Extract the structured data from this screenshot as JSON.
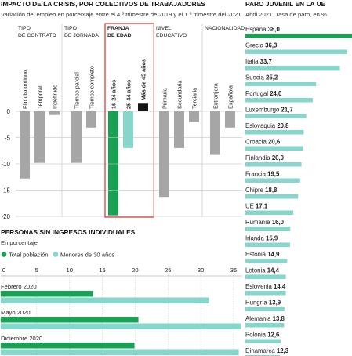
{
  "colors": {
    "gray_bar": "#a6a6a6",
    "green": "#1aa055",
    "light_teal": "#86d6cb",
    "black": "#151515",
    "red_box": "#d6332f",
    "grid": "#cfcfcf",
    "text": "#222222"
  },
  "panel_left": {
    "title": "IMPACTO DE LA CRISIS, POR COLECTIVOS DE TRABAJADORES",
    "subtitle": "Variación del empleo en porcentaje entre el 4.º trimestre de 2019 y el 1.º trimestre del 2021"
  },
  "panel_bottom": {
    "title": "PERSONAS SIN INGRESOS INDIVIDUALES",
    "subtitle": "En porcentaje"
  },
  "panel_right": {
    "title": "PARO JUVENIL EN LA UE",
    "subtitle": "Abril 2021. Tasa de paro, en %"
  },
  "chart_data": [
    {
      "type": "bar",
      "title": "IMPACTO DE LA CRISIS, POR COLECTIVOS DE TRABAJADORES",
      "subtitle": "Variación del empleo en porcentaje entre el 4.º trimestre de 2019 y el 1.º trimestre del 2021",
      "ylim": [
        -20,
        0
      ],
      "yticks": [
        "0",
        "-5",
        "-10",
        "-15",
        "-20"
      ],
      "yvalues": [
        0,
        -5,
        -10,
        -15,
        -20
      ],
      "grid": true,
      "groups": [
        {
          "name_lines": [
            "TIPO",
            "DE CONTRATO"
          ],
          "highlight": false,
          "bars": [
            {
              "label": "Fijo discontinuo",
              "value": -12.8
            },
            {
              "label": "Temporal",
              "value": -9.8
            },
            {
              "label": "Indefinido",
              "value": -0.7
            }
          ]
        },
        {
          "name_lines": [
            "TIPO",
            "DE JORNADA"
          ],
          "highlight": false,
          "bars": [
            {
              "label": "Tiempo parcial",
              "value": -9.8
            },
            {
              "label": "Tiempo completo",
              "value": -3.1
            }
          ]
        },
        {
          "name_lines": [
            "FRANJA",
            "DE EDAD"
          ],
          "highlight": true,
          "bars": [
            {
              "label": "16-24 años",
              "value": -19.8,
              "color": "#1aa055"
            },
            {
              "label": "25-44 años",
              "value": -7.0,
              "color": "#86d6cb"
            },
            {
              "label": "Más de 45 años",
              "value": 1.6,
              "color": "#151515"
            }
          ]
        },
        {
          "name_lines": [
            "NIVEL",
            "EDUCATIVO"
          ],
          "highlight": false,
          "bars": [
            {
              "label": "Primaria",
              "value": -16.3
            },
            {
              "label": "Secundaria",
              "value": -7.0
            },
            {
              "label": "Terciaria",
              "value": -2.0
            }
          ]
        },
        {
          "name_lines": [
            "NACIONALIDAD"
          ],
          "highlight": false,
          "bars": [
            {
              "label": "Extranjera",
              "value": -8.3
            },
            {
              "label": "Española",
              "value": -3.1
            }
          ]
        }
      ]
    },
    {
      "type": "bar",
      "orientation": "horizontal",
      "title": "PERSONAS SIN INGRESOS INDIVIDUALES",
      "subtitle": "En porcentaje",
      "xlim": [
        0,
        35
      ],
      "xticks": [
        "0",
        "5",
        "10",
        "15",
        "20",
        "25",
        "30",
        "35"
      ],
      "xvalues": [
        0,
        5,
        10,
        15,
        20,
        25,
        30,
        35
      ],
      "legend_position": "top-left",
      "series": [
        {
          "name": "Total población",
          "color": "#1aa055",
          "values": [
            13.6,
            20.5,
            19.9
          ]
        },
        {
          "name": "Menores de 30 años",
          "color": "#86d6cb",
          "values": [
            31.3,
            36.2,
            35.8
          ]
        }
      ],
      "categories": [
        "Febrero 2020",
        "Mayo 2020",
        "Diciembre 2020"
      ]
    },
    {
      "type": "bar",
      "orientation": "horizontal",
      "title": "PARO JUVENIL EN LA UE",
      "subtitle": "Abril 2021. Tasa de paro, en %",
      "xlim": [
        0,
        38
      ],
      "items": [
        {
          "country": "España",
          "value": 38.0,
          "value_label": "38,0",
          "highlight": true
        },
        {
          "country": "Grecia",
          "value": 36.3,
          "value_label": "36,3"
        },
        {
          "country": "Italia",
          "value": 33.7,
          "value_label": "33,7"
        },
        {
          "country": "Suecia",
          "value": 25.2,
          "value_label": "25,2"
        },
        {
          "country": "Portugal",
          "value": 24.0,
          "value_label": "24,0"
        },
        {
          "country": "Luxemburgo",
          "value": 21.7,
          "value_label": "21,7"
        },
        {
          "country": "Eslovaquia",
          "value": 20.8,
          "value_label": "20,8"
        },
        {
          "country": "Croacia",
          "value": 20.6,
          "value_label": "20,6"
        },
        {
          "country": "Finlandia",
          "value": 20.0,
          "value_label": "20,0"
        },
        {
          "country": "Francia",
          "value": 19.5,
          "value_label": "19,5"
        },
        {
          "country": "Chipre",
          "value": 18.8,
          "value_label": "18,8"
        },
        {
          "country": "UE",
          "value": 17.1,
          "value_label": "17,1"
        },
        {
          "country": "Rumanía",
          "value": 16.0,
          "value_label": "16,0"
        },
        {
          "country": "Irlanda",
          "value": 15.9,
          "value_label": "15,9"
        },
        {
          "country": "Estonia",
          "value": 14.9,
          "value_label": "14,9"
        },
        {
          "country": "Letonia",
          "value": 14.4,
          "value_label": "14,4"
        },
        {
          "country": "Eslovenia",
          "value": 14.4,
          "value_label": "14,4"
        },
        {
          "country": "Hungría",
          "value": 13.9,
          "value_label": "13,9"
        },
        {
          "country": "Alemania",
          "value": 13.8,
          "value_label": "13,8"
        },
        {
          "country": "Polonia",
          "value": 12.6,
          "value_label": "12,6"
        },
        {
          "country": "Dinamarca",
          "value": 12.3,
          "value_label": "12,3"
        }
      ]
    }
  ]
}
